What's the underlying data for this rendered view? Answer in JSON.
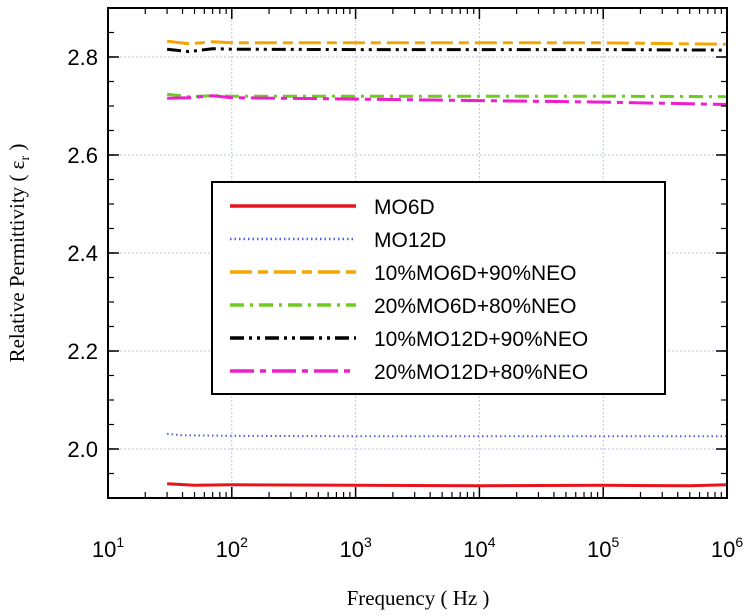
{
  "chart_data": {
    "type": "line",
    "xlabel": "Frequency ( Hz )",
    "ylabel_main": "Relative Permittivity ( ε",
    "ylabel_sub": "r",
    "ylabel_end": " )",
    "x_scale": "log",
    "xlim": [
      10,
      1000000
    ],
    "ylim": [
      1.9,
      2.9
    ],
    "grid": true,
    "legend_position": "center",
    "x_ticks": [
      {
        "base": "10",
        "exp": "1",
        "value": 10
      },
      {
        "base": "10",
        "exp": "2",
        "value": 100
      },
      {
        "base": "10",
        "exp": "3",
        "value": 1000
      },
      {
        "base": "10",
        "exp": "4",
        "value": 10000
      },
      {
        "base": "10",
        "exp": "5",
        "value": 100000
      },
      {
        "base": "10",
        "exp": "6",
        "value": 1000000
      }
    ],
    "y_ticks": [
      {
        "label": "2.0",
        "value": 2.0
      },
      {
        "label": "2.2",
        "value": 2.2
      },
      {
        "label": "2.4",
        "value": 2.4
      },
      {
        "label": "2.6",
        "value": 2.6
      },
      {
        "label": "2.8",
        "value": 2.8
      }
    ],
    "series": [
      {
        "name": "MO6D",
        "color": "#e8141c",
        "dash": "",
        "width": 3,
        "points": [
          [
            30,
            1.929
          ],
          [
            50,
            1.926
          ],
          [
            100,
            1.927
          ],
          [
            1000,
            1.926
          ],
          [
            10000,
            1.925
          ],
          [
            100000,
            1.926
          ],
          [
            500000,
            1.925
          ],
          [
            1000000,
            1.927
          ]
        ]
      },
      {
        "name": "MO12D",
        "color": "#5060e0",
        "dash": "1.5,3",
        "width": 2,
        "points": [
          [
            30,
            2.031
          ],
          [
            40,
            2.028
          ],
          [
            100,
            2.027
          ],
          [
            1000,
            2.026
          ],
          [
            10000,
            2.026
          ],
          [
            100000,
            2.026
          ],
          [
            1000000,
            2.026
          ]
        ]
      },
      {
        "name": "10%MO6D+90%NEO",
        "color": "#f5a500",
        "dash": "22,6,10,6",
        "width": 3,
        "points": [
          [
            30,
            2.832
          ],
          [
            45,
            2.827
          ],
          [
            70,
            2.831
          ],
          [
            100,
            2.829
          ],
          [
            1000,
            2.829
          ],
          [
            10000,
            2.829
          ],
          [
            100000,
            2.829
          ],
          [
            1000000,
            2.826
          ]
        ]
      },
      {
        "name": "20%MO6D+80%NEO",
        "color": "#6dcc20",
        "dash": "14,6,3,6",
        "width": 3,
        "points": [
          [
            30,
            2.724
          ],
          [
            45,
            2.719
          ],
          [
            70,
            2.721
          ],
          [
            100,
            2.72
          ],
          [
            1000,
            2.72
          ],
          [
            10000,
            2.72
          ],
          [
            100000,
            2.72
          ],
          [
            1000000,
            2.719
          ]
        ]
      },
      {
        "name": "10%MO12D+90%NEO",
        "color": "#000000",
        "dash": "14,5,3,5,3,5",
        "width": 3,
        "points": [
          [
            30,
            2.816
          ],
          [
            45,
            2.811
          ],
          [
            70,
            2.817
          ],
          [
            100,
            2.816
          ],
          [
            1000,
            2.815
          ],
          [
            10000,
            2.815
          ],
          [
            100000,
            2.815
          ],
          [
            1000000,
            2.814
          ]
        ]
      },
      {
        "name": "20%MO12D+80%NEO",
        "color": "#ee1ecc",
        "dash": "24,6,6,6",
        "width": 3,
        "points": [
          [
            30,
            2.716
          ],
          [
            45,
            2.717
          ],
          [
            70,
            2.721
          ],
          [
            100,
            2.717
          ],
          [
            1000,
            2.714
          ],
          [
            10000,
            2.711
          ],
          [
            100000,
            2.708
          ],
          [
            1000000,
            2.703
          ]
        ]
      }
    ]
  }
}
